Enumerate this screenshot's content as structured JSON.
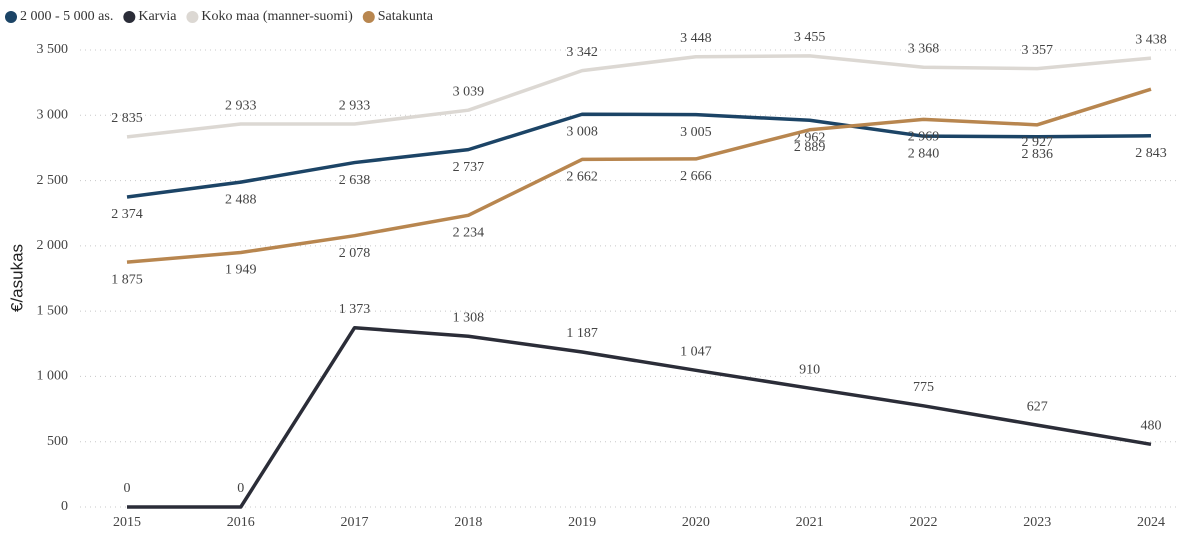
{
  "chart_data": {
    "type": "line",
    "y_label": "€/asukas",
    "categories": [
      "2015",
      "2016",
      "2017",
      "2018",
      "2019",
      "2020",
      "2021",
      "2022",
      "2023",
      "2024"
    ],
    "series": [
      {
        "name": "2 000 - 5 000 as.",
        "color": "#1c4466",
        "values": [
          2374,
          2488,
          2638,
          2737,
          3008,
          3005,
          2962,
          2840,
          2836,
          2843
        ],
        "value_labels": [
          "2 374",
          "2 488",
          "2 638",
          "2 737",
          "3 008",
          "3 005",
          "2 962",
          "2 840",
          "2 836",
          "2 843"
        ]
      },
      {
        "name": "Karvia",
        "color": "#2b2d38",
        "values": [
          0,
          0,
          1373,
          1308,
          1187,
          1047,
          910,
          775,
          627,
          480
        ],
        "value_labels": [
          "0",
          "0",
          "1 373",
          "1 308",
          "1 187",
          "1 047",
          "910",
          "775",
          "627",
          "480"
        ]
      },
      {
        "name": "Koko maa (manner-suomi)",
        "color": "#dcd8d3",
        "values": [
          2835,
          2933,
          2933,
          3039,
          3342,
          3448,
          3455,
          3368,
          3357,
          3438
        ],
        "value_labels": [
          "2 835",
          "2 933",
          "2 933",
          "3 039",
          "3 342",
          "3 448",
          "3 455",
          "3 368",
          "3 357",
          "3 438"
        ]
      },
      {
        "name": "Satakunta",
        "color": "#b8864f",
        "values": [
          1875,
          1949,
          2078,
          2234,
          2662,
          2666,
          2889,
          2969,
          2927,
          3200
        ],
        "value_labels": [
          "1 875",
          "1 949",
          "2 078",
          "2 234",
          "2 662",
          "2 666",
          "2 889",
          "2 969",
          "2 927",
          null
        ]
      }
    ],
    "ylim": [
      0,
      3500
    ],
    "yticks": [
      0,
      500,
      {
        "value": 1000,
        "label": "1 000"
      },
      {
        "value": 1500,
        "label": "1 500"
      },
      {
        "value": 2000,
        "label": "2 000"
      },
      {
        "value": 2500,
        "label": "2 500"
      },
      {
        "value": 3000,
        "label": "3 000"
      },
      {
        "value": 3500,
        "label": "3 500"
      }
    ],
    "grid": true,
    "legend": "top-left"
  }
}
